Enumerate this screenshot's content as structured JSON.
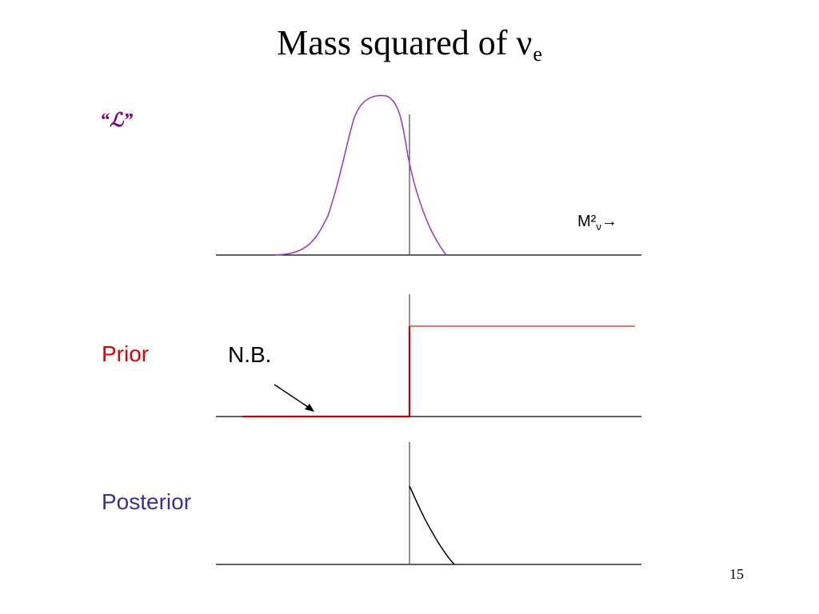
{
  "slide": {
    "title_main": "Mass squared of ν",
    "title_subscript": "e",
    "page_number": "15"
  },
  "likelihood_panel": {
    "label": "“ℒ”",
    "label_color": "#800080",
    "curve_color": "#9933CC",
    "axis_label_main": "M²",
    "axis_label_sub": "ν",
    "axis_arrow": "→"
  },
  "prior_panel": {
    "label": "Prior",
    "label_color": "#E00000",
    "curve_color": "#C00000",
    "step_color": "#E04040",
    "annotation": "N.B.",
    "annotation_arrow_icon": "arrow-down-right-icon"
  },
  "posterior_panel": {
    "label": "Posterior",
    "label_color": "#333399",
    "curve_color": "#000000"
  },
  "colors": {
    "axis": "#000000",
    "vertical_line": "#555555"
  }
}
